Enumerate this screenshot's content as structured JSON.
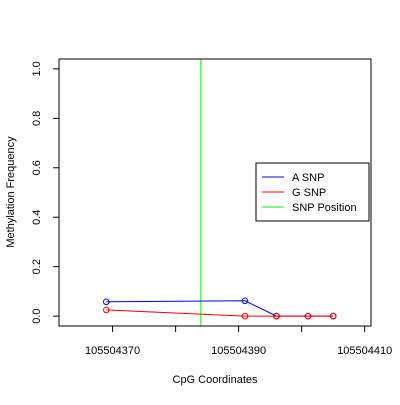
{
  "chart_data": {
    "type": "line",
    "title": "",
    "xlabel": "CpG Coordinates",
    "ylabel": "Methylation Frequency",
    "xlim": [
      105504361.5,
      105504411
    ],
    "ylim": [
      -0.04,
      1.04
    ],
    "x_ticks": [
      105504370,
      105504380,
      105504390,
      105504400,
      105504410
    ],
    "x_tick_labels": [
      "105504370",
      "",
      "105504390",
      "",
      "105504410"
    ],
    "y_ticks": [
      0.0,
      0.2,
      0.4,
      0.6,
      0.8,
      1.0
    ],
    "y_tick_labels": [
      "0.0",
      "0.2",
      "0.4",
      "0.6",
      "0.8",
      "1.0"
    ],
    "series": [
      {
        "name": "A SNP",
        "color": "#0000ff",
        "x": [
          105504369,
          105504391,
          105504396,
          105504401,
          105504405
        ],
        "y": [
          0.058,
          0.062,
          0.0,
          0.0,
          0.0
        ]
      },
      {
        "name": "G SNP",
        "color": "#ff0000",
        "x": [
          105504369,
          105504391,
          105504396,
          105504401,
          105504405
        ],
        "y": [
          0.025,
          0.0,
          0.0,
          0.0,
          0.0
        ]
      }
    ],
    "snp_position": {
      "name": "SNP Position",
      "x": 105504384,
      "color": "#00ff00"
    },
    "legend": {
      "placement": "right",
      "entries": [
        {
          "label": "A SNP",
          "color": "#0000ff"
        },
        {
          "label": "G SNP",
          "color": "#ff0000"
        },
        {
          "label": "SNP Position",
          "color": "#00ff00"
        }
      ]
    },
    "grid": false
  }
}
